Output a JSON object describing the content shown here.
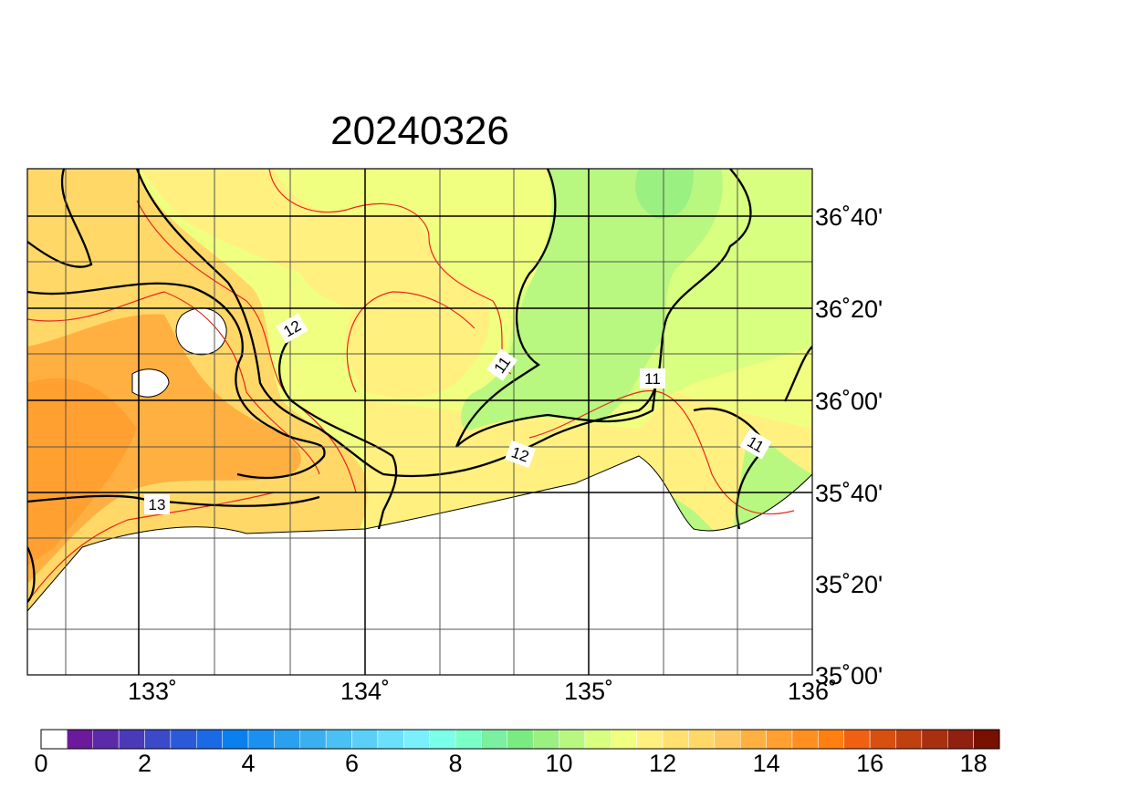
{
  "title": "20240326",
  "lon_labels": [
    "133˚",
    "134˚",
    "135˚",
    "136˚"
  ],
  "lat_labels": [
    "36˚40'",
    "36˚20'",
    "36˚00'",
    "35˚40'",
    "35˚20'",
    "35˚00'"
  ],
  "contour_labels": [
    "12",
    "11",
    "11",
    "12",
    "11",
    "13"
  ],
  "colorbar": {
    "labels": [
      "0",
      "2",
      "4",
      "6",
      "8",
      "10",
      "12",
      "14",
      "16",
      "18"
    ],
    "colors": [
      "#ffffff",
      "#6a1a9a",
      "#5a2aa8",
      "#4a3ab8",
      "#3a4ac8",
      "#2a5ad8",
      "#1a6ae6",
      "#0a80f0",
      "#1a90f0",
      "#2aa0f0",
      "#3ab0f0",
      "#4ac0f4",
      "#5ad0f8",
      "#6ae0fc",
      "#7af0ff",
      "#7affe8",
      "#7affc8",
      "#7af0a0",
      "#7aeb80",
      "#9af080",
      "#b8f880",
      "#d8ff80",
      "#f0ff80",
      "#fff080",
      "#ffe070",
      "#ffd868",
      "#ffc860",
      "#ffb040",
      "#ffa030",
      "#ff9020",
      "#ff8010",
      "#f06010",
      "#d85010",
      "#c04010",
      "#a83010",
      "#902010",
      "#781000"
    ]
  }
}
